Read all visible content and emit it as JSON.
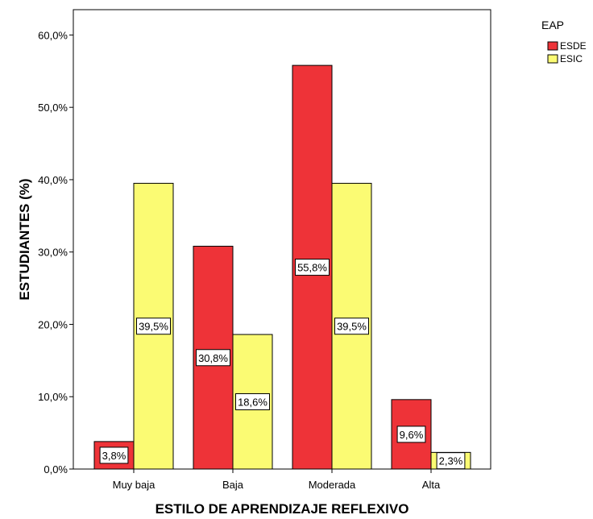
{
  "chart_data": {
    "type": "bar",
    "title": "",
    "xlabel": "ESTILO DE APRENDIZAJE REFLEXIVO",
    "ylabel": "ESTUDIANTES (%)",
    "categories": [
      "Muy baja",
      "Baja",
      "Moderada",
      "Alta"
    ],
    "ylim": [
      0,
      63.5
    ],
    "yticks": [
      0,
      10,
      20,
      30,
      40,
      50,
      60
    ],
    "ytick_labels": [
      "0,0%",
      "10,0%",
      "20,0%",
      "30,0%",
      "40,0%",
      "50,0%",
      "60,0%"
    ],
    "grid": false,
    "legend": {
      "title": "EAP",
      "position": "top-right"
    },
    "series": [
      {
        "name": "ESDE",
        "color": "#ee3338",
        "values": [
          3.8,
          30.8,
          55.8,
          9.6
        ],
        "labels": [
          "3,8%",
          "30,8%",
          "55,8%",
          "9,6%"
        ]
      },
      {
        "name": "ESIC",
        "color": "#fbfb73",
        "values": [
          39.5,
          18.6,
          39.5,
          2.3
        ],
        "labels": [
          "39,5%",
          "18,6%",
          "39,5%",
          "2,3%"
        ]
      }
    ]
  }
}
